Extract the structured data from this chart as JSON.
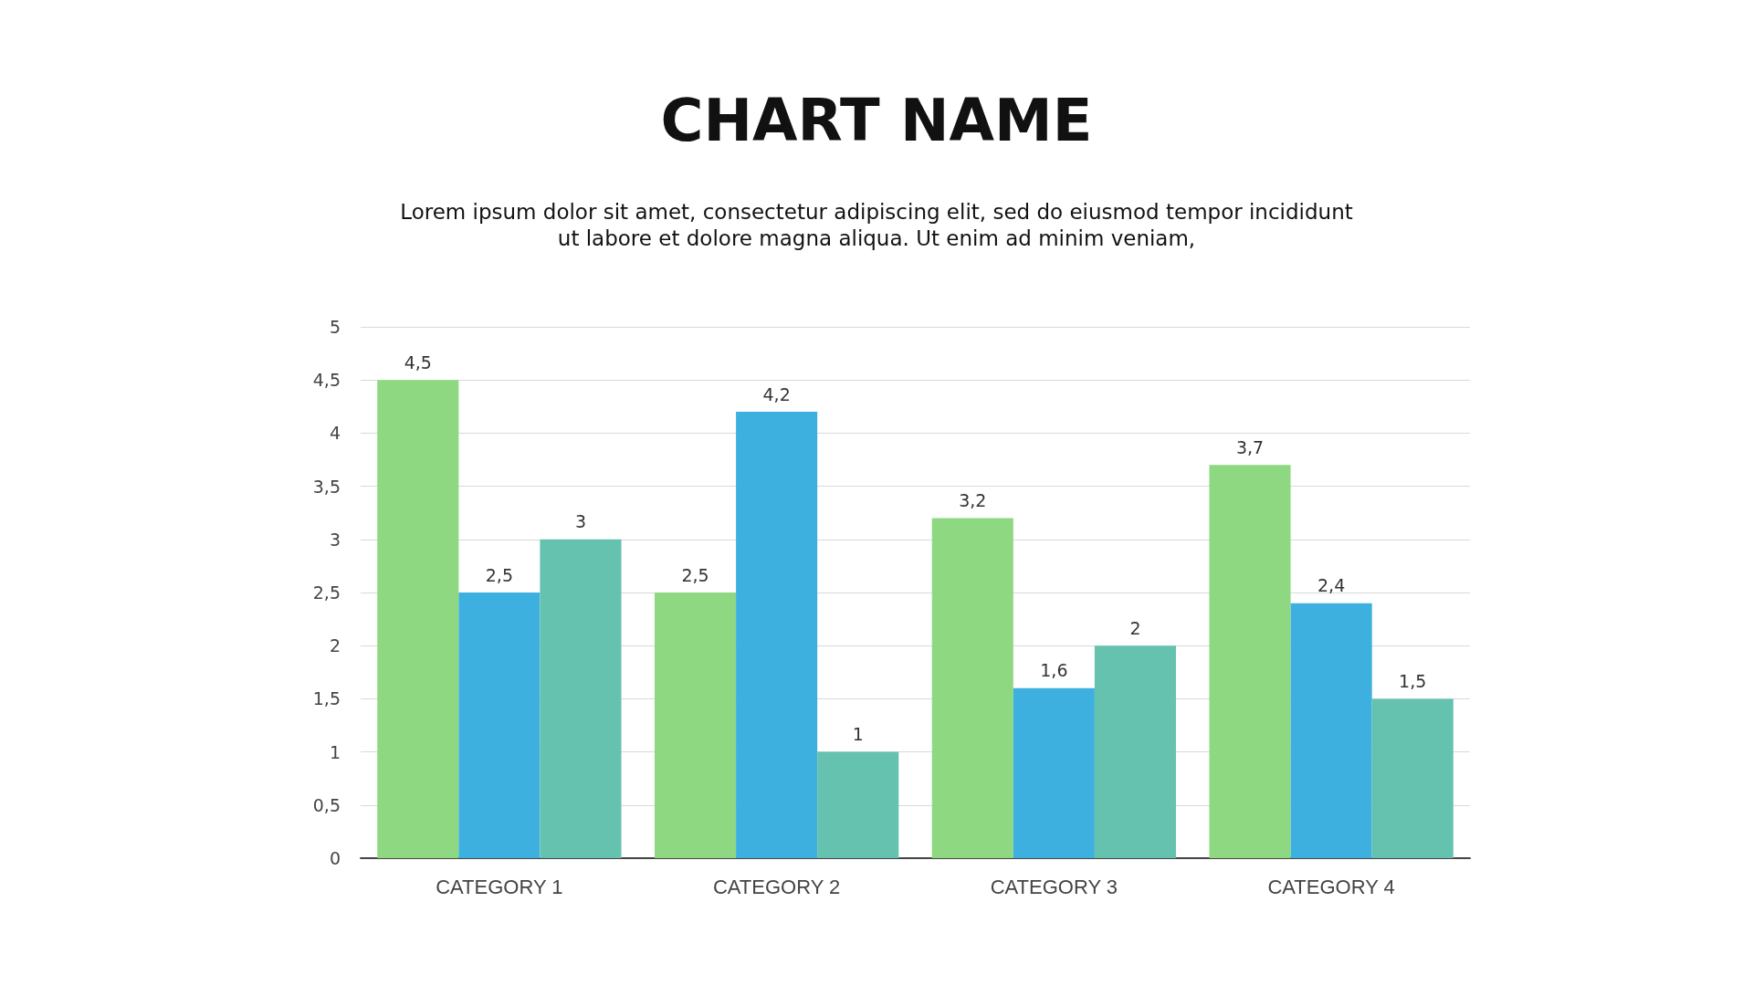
{
  "chart_data": {
    "type": "bar",
    "title": "CHART NAME",
    "subtitle": "Lorem ipsum dolor sit amet, consectetur adipiscing elit, sed do eiusmod tempor incididunt ut labore et dolore magna aliqua. Ut enim ad minim veniam,",
    "categories": [
      "CATEGORY 1",
      "CATEGORY 2",
      "CATEGORY 3",
      "CATEGORY 4"
    ],
    "series": [
      {
        "color": "#8fd882",
        "values": [
          4.5,
          2.5,
          3.2,
          3.7
        ],
        "value_labels": [
          "4,5",
          "2,5",
          "3,2",
          "3,7"
        ]
      },
      {
        "color": "#3eb0e0",
        "values": [
          2.5,
          4.2,
          1.6,
          2.4
        ],
        "value_labels": [
          "2,5",
          "4,2",
          "1,6",
          "2,4"
        ]
      },
      {
        "color": "#65c2ae",
        "values": [
          3,
          1,
          2,
          1.5
        ],
        "value_labels": [
          "3",
          "1",
          "2",
          "1,5"
        ]
      }
    ],
    "ylim": [
      0,
      5
    ],
    "yticks": [
      0,
      {
        "value": 0.5,
        "label": "0,5"
      },
      1,
      {
        "value": 1.5,
        "label": "1,5"
      },
      2,
      {
        "value": 2.5,
        "label": "2,5"
      },
      3,
      {
        "value": 3.5,
        "label": "3,5"
      },
      4,
      {
        "value": 4.5,
        "label": "4,5"
      },
      5
    ],
    "grid": "y"
  }
}
